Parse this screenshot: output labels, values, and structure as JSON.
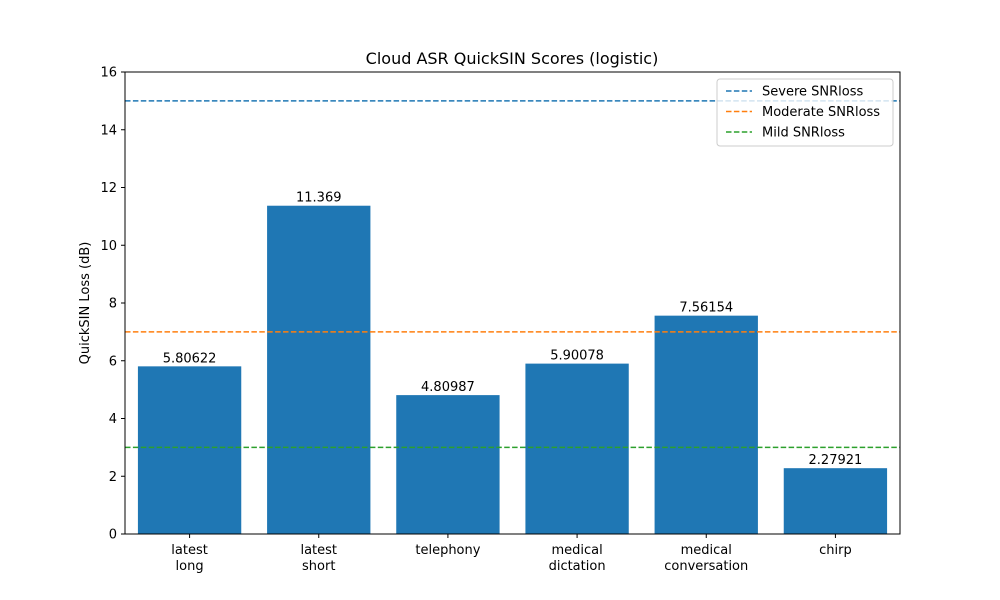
{
  "chart_data": {
    "type": "bar",
    "title": "Cloud ASR QuickSIN Scores (logistic)",
    "xlabel": "",
    "ylabel": "QuickSIN Loss (dB)",
    "ylim": [
      0,
      16
    ],
    "yticks": [
      0,
      2,
      4,
      6,
      8,
      10,
      12,
      14,
      16
    ],
    "categories": [
      [
        "latest",
        "long"
      ],
      [
        "latest",
        "short"
      ],
      [
        "telephony"
      ],
      [
        "medical",
        "dictation"
      ],
      [
        "medical",
        "conversation"
      ],
      [
        "chirp"
      ]
    ],
    "values": [
      5.80622,
      11.369,
      4.80987,
      5.90078,
      7.56154,
      2.27921
    ],
    "value_labels": [
      "5.80622",
      "11.369",
      "4.80987",
      "5.90078",
      "7.56154",
      "2.27921"
    ],
    "bar_color": "#1f77b4",
    "reference_lines": [
      {
        "name": "Severe SNRloss",
        "y": 15,
        "color": "#1f77b4"
      },
      {
        "name": "Moderate SNRloss",
        "y": 7,
        "color": "#ff7f0e"
      },
      {
        "name": "Mild SNRloss",
        "y": 3,
        "color": "#2ca02c"
      }
    ],
    "grid": false,
    "legend_position": "top-right"
  }
}
